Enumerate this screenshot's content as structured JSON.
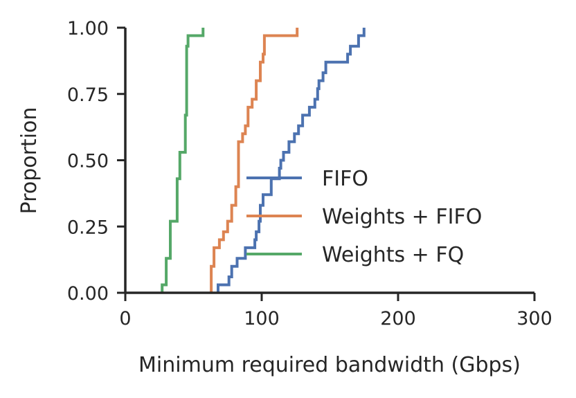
{
  "chart_data": {
    "type": "line",
    "subtype": "step-ecdf",
    "title": "",
    "xlabel": "Minimum required bandwidth (Gbps)",
    "ylabel": "Proportion",
    "xlim": [
      0,
      300
    ],
    "ylim": [
      0,
      1
    ],
    "x_ticks": [
      0,
      100,
      200,
      300
    ],
    "x_tick_labels": [
      "0",
      "100",
      "200",
      "300"
    ],
    "y_ticks": [
      0,
      0.25,
      0.5,
      0.75,
      1.0
    ],
    "y_tick_labels": [
      "0.00",
      "0.25",
      "0.50",
      "0.75",
      "1.00"
    ],
    "grid": false,
    "legend_position": "center-right",
    "series": [
      {
        "name": "FIFO",
        "color": "#4c72b0",
        "x": [
          68,
          68,
          76,
          78,
          82,
          86,
          88,
          95,
          96,
          98,
          99,
          101,
          107,
          110,
          113,
          114,
          116,
          120,
          124,
          127,
          130,
          135,
          139,
          141,
          142,
          145,
          146,
          147,
          148,
          150,
          152,
          163,
          165,
          167,
          171,
          172,
          173,
          175
        ],
        "y": [
          0.0,
          0.03,
          0.06,
          0.1,
          0.13,
          0.13,
          0.17,
          0.2,
          0.23,
          0.27,
          0.33,
          0.37,
          0.43,
          0.43,
          0.47,
          0.5,
          0.53,
          0.57,
          0.6,
          0.63,
          0.67,
          0.7,
          0.73,
          0.77,
          0.8,
          0.83,
          0.83,
          0.87,
          0.87,
          0.87,
          0.87,
          0.9,
          0.93,
          0.93,
          0.97,
          0.97,
          0.97,
          1.0
        ]
      },
      {
        "name": "Weights + FIFO",
        "color": "#dd8452",
        "x": [
          63,
          63,
          65,
          69,
          72,
          75,
          78,
          81,
          83,
          84,
          86,
          88,
          90,
          93,
          96,
          99,
          101,
          102,
          126
        ],
        "y": [
          0.0,
          0.1,
          0.17,
          0.2,
          0.23,
          0.27,
          0.33,
          0.4,
          0.57,
          0.57,
          0.6,
          0.63,
          0.7,
          0.73,
          0.8,
          0.87,
          0.9,
          0.97,
          1.0
        ]
      },
      {
        "name": "Weights + FQ",
        "color": "#55a868",
        "x": [
          27,
          27,
          30,
          33,
          37,
          38,
          40,
          44,
          45,
          46,
          48,
          51,
          56,
          57
        ],
        "y": [
          0.0,
          0.03,
          0.13,
          0.27,
          0.27,
          0.43,
          0.53,
          0.67,
          0.93,
          0.97,
          0.97,
          0.97,
          0.97,
          1.0
        ]
      }
    ]
  }
}
